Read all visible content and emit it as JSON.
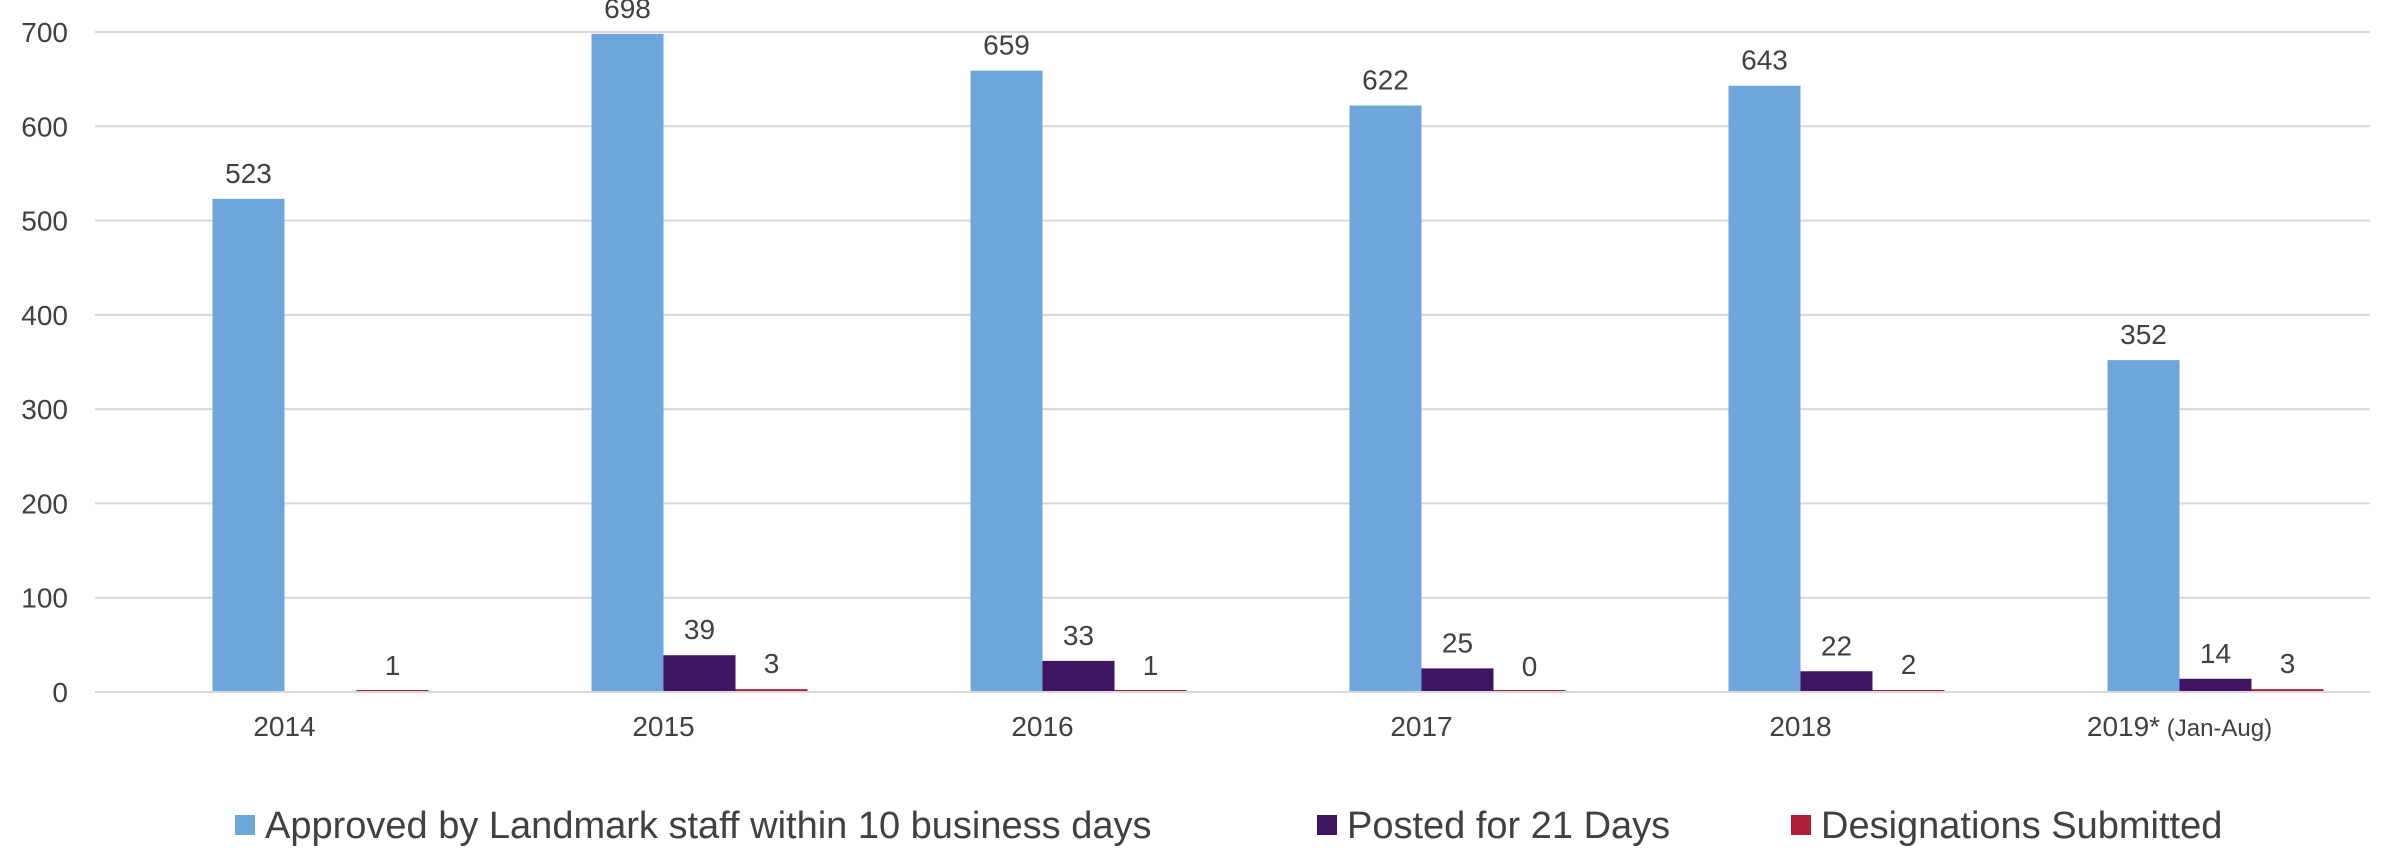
{
  "chart_data": {
    "type": "bar",
    "title": "",
    "xlabel": "",
    "ylabel": "",
    "ylim": [
      0,
      700
    ],
    "yticks": [
      0,
      100,
      200,
      300,
      400,
      500,
      600,
      700
    ],
    "ytick_labels": [
      "0",
      "100",
      "200",
      "300",
      "400",
      "500",
      "600",
      "700"
    ],
    "grid": true,
    "legend_position": "bottom",
    "categories": [
      "2014",
      "2015",
      "2016",
      "2017",
      "2018",
      "2019* (Jan-Aug)"
    ],
    "category_labels": [
      {
        "main": "2014",
        "suffix": ""
      },
      {
        "main": "2015",
        "suffix": ""
      },
      {
        "main": "2016",
        "suffix": ""
      },
      {
        "main": "2017",
        "suffix": ""
      },
      {
        "main": "2018",
        "suffix": ""
      },
      {
        "main": "2019*",
        "suffix": " (Jan-Aug)"
      }
    ],
    "series": [
      {
        "name": "Approved by Landmark staff within 10 business days",
        "color": "#6ea6dc",
        "values": [
          523,
          698,
          659,
          622,
          643,
          352
        ],
        "labels": [
          "523",
          "698",
          "659",
          "622",
          "643",
          "352"
        ]
      },
      {
        "name": "Posted for 21 Days",
        "color": "#3f1461",
        "values": [
          null,
          39,
          33,
          25,
          22,
          14
        ],
        "labels": [
          null,
          "39",
          "33",
          "25",
          "22",
          "14"
        ]
      },
      {
        "name": "Designations Submitted",
        "color": "#b01e35",
        "values": [
          1,
          3,
          1,
          0,
          2,
          3
        ],
        "labels": [
          "1",
          "3",
          "1",
          "0",
          "2",
          "3"
        ]
      }
    ]
  }
}
